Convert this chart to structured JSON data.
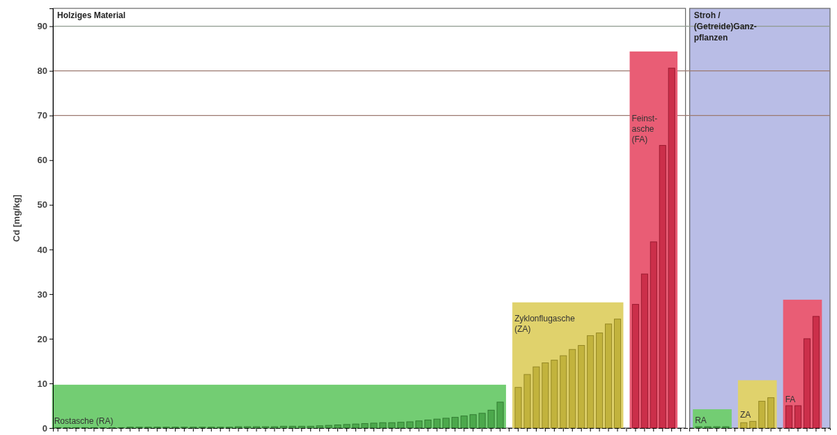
{
  "chart_data": {
    "type": "bar",
    "ylabel": "Cd [mg/kg]",
    "ylim": [
      0,
      94
    ],
    "yticks": [
      0,
      10,
      20,
      30,
      40,
      50,
      60,
      70,
      80,
      90
    ],
    "categories": [
      null,
      null,
      null,
      null,
      null,
      null,
      null,
      null,
      null,
      null,
      null,
      null,
      null,
      null,
      null,
      null,
      null,
      null,
      null,
      null,
      null,
      null,
      null,
      null,
      null,
      null,
      null,
      null,
      null,
      null,
      null,
      null,
      null,
      null,
      null,
      null,
      null,
      null,
      null,
      null,
      null,
      null,
      null,
      null,
      null,
      null,
      null,
      null,
      null,
      null,
      null,
      null,
      null,
      null,
      null,
      null,
      null,
      null,
      null,
      null,
      null,
      null,
      null,
      null,
      null,
      null,
      null,
      null,
      null,
      null,
      null,
      null,
      null,
      null,
      null,
      null,
      null,
      null,
      null,
      null,
      null,
      null,
      null,
      null,
      null,
      null
    ],
    "series": [
      {
        "name": "Rostasche (RA)",
        "color": "#3f9b3f",
        "values": [
          0.1,
          0.1,
          0.1,
          0.1,
          0.1,
          0.1,
          0.1,
          0.1,
          0.2,
          0.2,
          0.2,
          0.2,
          0.2,
          0.2,
          0.2,
          0.2,
          0.2,
          0.2,
          0.2,
          0.2,
          0.3,
          0.3,
          0.3,
          0.3,
          0.3,
          0.4,
          0.4,
          0.4,
          0.4,
          0.5,
          0.6,
          0.7,
          0.8,
          0.9,
          1.0,
          1.1,
          1.2,
          1.2,
          1.3,
          1.4,
          1.6,
          1.8,
          2.0,
          2.2,
          2.4,
          2.7,
          3.0,
          3.3,
          4.0,
          5.8,
          null,
          null,
          null,
          null,
          null,
          null,
          null,
          null,
          null,
          null,
          null,
          null,
          null,
          null,
          null,
          null,
          null,
          null,
          null,
          null,
          null,
          null,
          null,
          null,
          null,
          null,
          null,
          null,
          null,
          null,
          null,
          null,
          null,
          null,
          null,
          null
        ]
      },
      {
        "name": "Zyklonflugasche (ZA)",
        "color": "#b8a82e",
        "values": [
          null,
          null,
          null,
          null,
          null,
          null,
          null,
          null,
          null,
          null,
          null,
          null,
          null,
          null,
          null,
          null,
          null,
          null,
          null,
          null,
          null,
          null,
          null,
          null,
          null,
          null,
          null,
          null,
          null,
          null,
          null,
          null,
          null,
          null,
          null,
          null,
          null,
          null,
          null,
          null,
          null,
          null,
          null,
          null,
          null,
          null,
          null,
          null,
          null,
          null,
          null,
          9.1,
          12.0,
          13.7,
          14.6,
          15.2,
          16.2,
          17.6,
          18.5,
          20.7,
          21.3,
          23.3,
          24.4,
          null,
          null,
          null,
          null,
          null,
          null,
          null,
          null,
          null,
          null,
          null,
          null,
          null,
          null,
          null,
          null,
          null,
          null,
          null,
          null,
          null,
          null,
          null
        ]
      },
      {
        "name": "Feinst-asche (FA)",
        "color": "#c0203c",
        "values": [
          null,
          null,
          null,
          null,
          null,
          null,
          null,
          null,
          null,
          null,
          null,
          null,
          null,
          null,
          null,
          null,
          null,
          null,
          null,
          null,
          null,
          null,
          null,
          null,
          null,
          null,
          null,
          null,
          null,
          null,
          null,
          null,
          null,
          null,
          null,
          null,
          null,
          null,
          null,
          null,
          null,
          null,
          null,
          null,
          null,
          null,
          null,
          null,
          null,
          null,
          null,
          null,
          null,
          null,
          null,
          null,
          null,
          null,
          null,
          null,
          null,
          null,
          null,
          null,
          27.7,
          34.5,
          41.7,
          63.3,
          80.6,
          null,
          null,
          null,
          null,
          null,
          null,
          null,
          null,
          null,
          null,
          null,
          null,
          null,
          null,
          null,
          null,
          null
        ]
      },
      {
        "name": "RA",
        "color": "#3f9b3f",
        "values": [
          null,
          null,
          null,
          null,
          null,
          null,
          null,
          null,
          null,
          null,
          null,
          null,
          null,
          null,
          null,
          null,
          null,
          null,
          null,
          null,
          null,
          null,
          null,
          null,
          null,
          null,
          null,
          null,
          null,
          null,
          null,
          null,
          null,
          null,
          null,
          null,
          null,
          null,
          null,
          null,
          null,
          null,
          null,
          null,
          null,
          null,
          null,
          null,
          null,
          null,
          null,
          null,
          null,
          null,
          null,
          null,
          null,
          null,
          null,
          null,
          null,
          null,
          null,
          null,
          null,
          null,
          null,
          null,
          null,
          null,
          null,
          0.3,
          0.3,
          0.3,
          0.3,
          null,
          null,
          null,
          null,
          null,
          null,
          null,
          null,
          null,
          null,
          null
        ]
      },
      {
        "name": "ZA",
        "color": "#b8a82e",
        "values": [
          null,
          null,
          null,
          null,
          null,
          null,
          null,
          null,
          null,
          null,
          null,
          null,
          null,
          null,
          null,
          null,
          null,
          null,
          null,
          null,
          null,
          null,
          null,
          null,
          null,
          null,
          null,
          null,
          null,
          null,
          null,
          null,
          null,
          null,
          null,
          null,
          null,
          null,
          null,
          null,
          null,
          null,
          null,
          null,
          null,
          null,
          null,
          null,
          null,
          null,
          null,
          null,
          null,
          null,
          null,
          null,
          null,
          null,
          null,
          null,
          null,
          null,
          null,
          null,
          null,
          null,
          null,
          null,
          null,
          null,
          null,
          null,
          null,
          null,
          null,
          null,
          1.2,
          1.5,
          6.0,
          6.8,
          null,
          null,
          null,
          null,
          null,
          null
        ]
      },
      {
        "name": "FA",
        "color": "#c0203c",
        "values": [
          null,
          null,
          null,
          null,
          null,
          null,
          null,
          null,
          null,
          null,
          null,
          null,
          null,
          null,
          null,
          null,
          null,
          null,
          null,
          null,
          null,
          null,
          null,
          null,
          null,
          null,
          null,
          null,
          null,
          null,
          null,
          null,
          null,
          null,
          null,
          null,
          null,
          null,
          null,
          null,
          null,
          null,
          null,
          null,
          null,
          null,
          null,
          null,
          null,
          null,
          null,
          null,
          null,
          null,
          null,
          null,
          null,
          null,
          null,
          null,
          null,
          null,
          null,
          null,
          null,
          null,
          null,
          null,
          null,
          null,
          null,
          null,
          null,
          null,
          null,
          null,
          null,
          null,
          null,
          null,
          null,
          5.0,
          5.0,
          20.0,
          25.0,
          null
        ]
      }
    ],
    "ref_lines": [
      {
        "axis": "y",
        "value": 70,
        "color": "#9c7a70"
      },
      {
        "axis": "y",
        "value": 80,
        "color": "#9c7a70"
      },
      {
        "axis": "y",
        "value": 90,
        "color": "#8f9a8f"
      }
    ],
    "annotations": [
      "Holziges Material",
      "Stroh / (Getreide)Ganz-pflanzen"
    ]
  }
}
